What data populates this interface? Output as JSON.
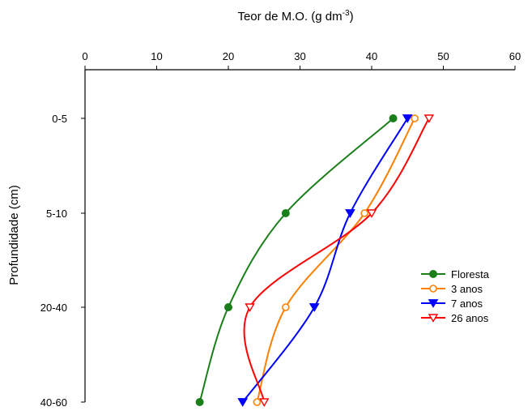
{
  "chart_data": {
    "type": "line",
    "title": "",
    "xlabel_main": "Teor de M.O. (g dm",
    "xlabel_sup": "-3",
    "xlabel_end": ")",
    "ylabel": "Profundidade (cm)",
    "x_axis_position": "top",
    "xlim": [
      0,
      60
    ],
    "x_ticks": [
      "0",
      "10",
      "20",
      "30",
      "40",
      "50",
      "60"
    ],
    "categories": [
      "0-5",
      "5-10",
      "20-40",
      "40-60"
    ],
    "grid": false,
    "legend_position": "right",
    "series": [
      {
        "name": "Floresta",
        "values": [
          43,
          28,
          20,
          16
        ],
        "color": "#1a7f1a",
        "marker": "filled-circle"
      },
      {
        "name": "3 anos",
        "values": [
          46,
          39,
          28,
          24
        ],
        "color": "#ff8000",
        "marker": "open-circle"
      },
      {
        "name": "7 anos",
        "values": [
          45,
          37,
          32,
          22
        ],
        "color": "#0000ff",
        "marker": "filled-triangle-down"
      },
      {
        "name": "26 anos",
        "values": [
          48,
          40,
          23,
          25
        ],
        "color": "#ff0000",
        "marker": "open-triangle-down"
      }
    ]
  }
}
